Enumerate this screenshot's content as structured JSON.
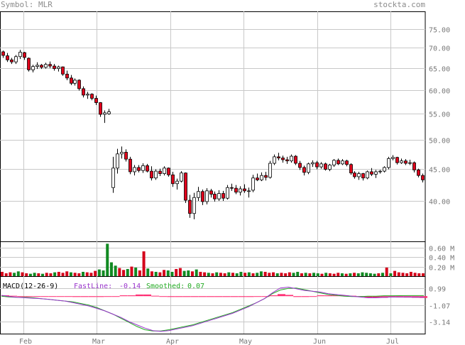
{
  "header": {
    "symbol_label": "Symbol: MLR",
    "site": "stockta.com"
  },
  "colors": {
    "up_candle": "#ffffff",
    "down_candle": "#e0001b",
    "volume_up": "#118a22",
    "volume_down": "#d4001a",
    "macd_histogram": "#ff2f74",
    "fastline": "#9933cc",
    "smoothed": "#22aa22",
    "grid": "#c8c8c8",
    "axis_text": "#777777"
  },
  "chart_data": [
    {
      "type": "candlestick",
      "title": "",
      "x_ticks": [
        "Feb",
        "Mar",
        "Apr",
        "May",
        "Jun",
        "Jul"
      ],
      "y_ticks": [
        "75.00",
        "70.00",
        "65.00",
        "60.00",
        "55.00",
        "50.00",
        "45.00",
        "40.00"
      ],
      "ylim": [
        34.5,
        80
      ],
      "y_scale": "log",
      "grid": true,
      "date_range": [
        "2013-01-21",
        "2013-07-23"
      ],
      "ohlc": [
        [
          69.0,
          69.3,
          67.5,
          68.1
        ],
        [
          68.0,
          68.7,
          66.5,
          67.0
        ],
        [
          67.0,
          67.5,
          66.0,
          66.5
        ],
        [
          66.5,
          68.2,
          66.0,
          67.8
        ],
        [
          67.8,
          69.5,
          67.2,
          68.9
        ],
        [
          68.8,
          69.0,
          67.0,
          67.6
        ],
        [
          67.4,
          67.6,
          64.2,
          64.6
        ],
        [
          64.6,
          65.8,
          64.0,
          65.4
        ],
        [
          65.4,
          66.4,
          64.8,
          65.7
        ],
        [
          65.7,
          66.0,
          64.8,
          65.2
        ],
        [
          65.2,
          66.3,
          64.9,
          65.9
        ],
        [
          65.9,
          66.6,
          65.0,
          65.5
        ],
        [
          65.5,
          66.0,
          64.4,
          64.9
        ],
        [
          64.9,
          65.6,
          64.2,
          65.3
        ],
        [
          65.3,
          65.4,
          63.2,
          63.6
        ],
        [
          63.6,
          64.4,
          62.2,
          62.7
        ],
        [
          62.7,
          63.4,
          61.1,
          61.5
        ],
        [
          61.5,
          62.6,
          61.0,
          62.2
        ],
        [
          62.2,
          62.4,
          59.9,
          60.3
        ],
        [
          60.3,
          60.8,
          58.4,
          58.9
        ],
        [
          58.9,
          59.6,
          58.1,
          59.1
        ],
        [
          59.1,
          59.3,
          57.8,
          58.2
        ],
        [
          58.2,
          58.8,
          56.8,
          57.3
        ],
        [
          57.3,
          57.4,
          54.4,
          54.9
        ],
        [
          54.9,
          55.7,
          53.2,
          55.2
        ],
        [
          55.0,
          56.0,
          54.8,
          55.4
        ],
        [
          42.0,
          47.0,
          41.2,
          45.1
        ],
        [
          45.1,
          48.4,
          44.2,
          47.5
        ],
        [
          47.5,
          48.8,
          46.7,
          47.8
        ],
        [
          47.8,
          48.3,
          46.2,
          46.6
        ],
        [
          46.6,
          47.0,
          44.1,
          44.5
        ],
        [
          44.5,
          45.6,
          43.9,
          45.2
        ],
        [
          45.2,
          45.6,
          44.4,
          44.7
        ],
        [
          44.7,
          45.9,
          44.3,
          45.5
        ],
        [
          45.5,
          45.8,
          44.4,
          44.6
        ],
        [
          44.6,
          45.4,
          43.1,
          43.5
        ],
        [
          43.5,
          44.9,
          43.2,
          44.6
        ],
        [
          44.6,
          45.0,
          43.8,
          44.2
        ],
        [
          44.2,
          45.4,
          43.9,
          45.1
        ],
        [
          45.1,
          45.2,
          43.7,
          44.0
        ],
        [
          44.0,
          44.5,
          42.1,
          42.6
        ],
        [
          42.6,
          43.4,
          41.7,
          43.0
        ],
        [
          43.0,
          44.6,
          42.8,
          44.3
        ],
        [
          44.3,
          44.4,
          39.7,
          40.1
        ],
        [
          40.1,
          40.9,
          37.6,
          38.2
        ],
        [
          38.2,
          41.2,
          37.4,
          40.5
        ],
        [
          40.5,
          42.1,
          40.0,
          41.4
        ],
        [
          41.4,
          41.7,
          39.4,
          39.9
        ],
        [
          39.9,
          41.9,
          39.5,
          41.5
        ],
        [
          41.5,
          41.8,
          40.5,
          41.0
        ],
        [
          41.0,
          41.4,
          39.9,
          40.3
        ],
        [
          40.3,
          41.6,
          40.0,
          41.1
        ],
        [
          41.1,
          41.5,
          40.0,
          40.4
        ],
        [
          40.4,
          42.4,
          40.2,
          42.0
        ],
        [
          42.0,
          42.6,
          41.5,
          41.9
        ],
        [
          41.9,
          42.4,
          41.0,
          41.3
        ],
        [
          41.3,
          42.2,
          40.8,
          41.8
        ],
        [
          41.8,
          42.5,
          41.2,
          41.5
        ],
        [
          41.5,
          42.0,
          40.5,
          41.5
        ],
        [
          41.6,
          44.0,
          41.3,
          43.5
        ],
        [
          43.5,
          44.2,
          43.0,
          43.2
        ],
        [
          43.2,
          44.4,
          43.0,
          43.9
        ],
        [
          43.9,
          44.5,
          43.1,
          43.6
        ],
        [
          43.6,
          46.3,
          43.4,
          45.9
        ],
        [
          45.9,
          47.4,
          45.6,
          47.0
        ],
        [
          47.0,
          47.7,
          46.4,
          46.8
        ],
        [
          46.8,
          47.2,
          46.0,
          46.5
        ],
        [
          46.5,
          47.0,
          45.8,
          46.3
        ],
        [
          46.3,
          47.4,
          46.0,
          47.1
        ],
        [
          47.1,
          47.3,
          45.6,
          45.9
        ],
        [
          45.9,
          46.3,
          44.8,
          45.2
        ],
        [
          45.2,
          45.5,
          43.9,
          44.4
        ],
        [
          44.4,
          46.0,
          44.1,
          45.8
        ],
        [
          45.8,
          46.4,
          45.3,
          46.0
        ],
        [
          46.0,
          46.3,
          44.9,
          45.3
        ],
        [
          45.3,
          46.1,
          45.0,
          45.8
        ],
        [
          45.8,
          46.0,
          44.7,
          44.9
        ],
        [
          44.9,
          45.8,
          44.6,
          45.6
        ],
        [
          45.6,
          46.6,
          45.3,
          46.4
        ],
        [
          46.4,
          46.7,
          45.6,
          45.8
        ],
        [
          45.8,
          46.6,
          45.6,
          46.3
        ],
        [
          46.3,
          46.5,
          45.4,
          45.7
        ],
        [
          45.7,
          45.9,
          44.0,
          44.3
        ],
        [
          44.3,
          44.6,
          43.4,
          43.7
        ],
        [
          43.7,
          44.5,
          43.2,
          44.2
        ],
        [
          44.2,
          44.3,
          43.1,
          43.5
        ],
        [
          43.5,
          44.7,
          43.3,
          44.5
        ],
        [
          44.5,
          45.1,
          43.8,
          44.1
        ],
        [
          44.1,
          44.8,
          43.5,
          44.5
        ],
        [
          44.5,
          44.8,
          44.2,
          44.6
        ],
        [
          44.6,
          45.4,
          44.4,
          45.2
        ],
        [
          45.2,
          47.0,
          44.9,
          46.7
        ],
        [
          46.7,
          47.3,
          46.4,
          46.9
        ],
        [
          46.9,
          47.0,
          45.7,
          46.0
        ],
        [
          46.0,
          46.7,
          45.8,
          46.3
        ],
        [
          46.3,
          46.6,
          45.6,
          45.9
        ],
        [
          45.9,
          46.5,
          45.6,
          46.0
        ],
        [
          46.0,
          46.2,
          44.4,
          44.8
        ],
        [
          44.8,
          45.0,
          43.6,
          43.9
        ],
        [
          43.9,
          44.2,
          42.8,
          43.2
        ]
      ]
    },
    {
      "type": "bar",
      "title": "",
      "y_ticks": [
        "0.60 M",
        "0.40 M",
        "0.20 M"
      ],
      "ylim": [
        0,
        0.7
      ],
      "grid": true,
      "values": [
        0.09,
        0.06,
        0.08,
        0.07,
        0.1,
        0.08,
        0.06,
        0.05,
        0.07,
        0.06,
        0.05,
        0.07,
        0.06,
        0.08,
        0.09,
        0.07,
        0.1,
        0.08,
        0.07,
        0.06,
        0.09,
        0.08,
        0.07,
        0.11,
        0.14,
        0.12,
        0.68,
        0.29,
        0.22,
        0.17,
        0.13,
        0.15,
        0.2,
        0.18,
        0.12,
        0.52,
        0.16,
        0.1,
        0.09,
        0.08,
        0.13,
        0.12,
        0.09,
        0.15,
        0.17,
        0.11,
        0.12,
        0.1,
        0.14,
        0.09,
        0.08,
        0.07,
        0.06,
        0.08,
        0.07,
        0.06,
        0.08,
        0.07,
        0.06,
        0.09,
        0.07,
        0.08,
        0.06,
        0.07,
        0.1,
        0.09,
        0.07,
        0.08,
        0.06,
        0.07,
        0.06,
        0.08,
        0.07,
        0.09,
        0.06,
        0.07,
        0.06,
        0.07,
        0.06,
        0.05,
        0.07,
        0.06,
        0.05,
        0.07,
        0.06,
        0.05,
        0.06,
        0.07,
        0.06,
        0.08,
        0.07,
        0.06,
        0.05,
        0.06,
        0.07,
        0.18,
        0.06,
        0.11,
        0.08,
        0.07,
        0.06,
        0.09,
        0.07,
        0.06,
        0.06
      ]
    },
    {
      "type": "line",
      "title": "MACD(12-26-9)",
      "y_ticks": [
        "0.99",
        "-1.07",
        "-3.14"
      ],
      "ylim": [
        -4.4,
        1.75
      ],
      "grid": true,
      "series": [
        {
          "name": "FastLine:",
          "value_label": "-0.14",
          "values": [
            0.1,
            -0.05,
            -0.15,
            -0.2,
            -0.25,
            -0.3,
            -0.4,
            -0.5,
            -0.6,
            -0.8,
            -1.0,
            -1.2,
            -1.5,
            -1.8,
            -2.2,
            -2.6,
            -3.1,
            -3.5,
            -3.9,
            -4.2,
            -4.3,
            -4.2,
            -4.0,
            -3.8,
            -3.6,
            -3.3,
            -3.0,
            -2.7,
            -2.4,
            -2.1,
            -1.7,
            -1.3,
            -0.8,
            -0.3,
            0.4,
            1.0,
            1.1,
            0.9,
            0.7,
            0.6,
            0.5,
            0.3,
            0.2,
            0.1,
            0.0,
            -0.1,
            -0.2,
            -0.2,
            -0.15,
            -0.1,
            -0.1,
            -0.1,
            -0.12,
            -0.14
          ]
        },
        {
          "name": "Smoothed:",
          "value_label": "0.07",
          "values": [
            0.0,
            -0.1,
            -0.15,
            -0.15,
            -0.2,
            -0.3,
            -0.4,
            -0.5,
            -0.6,
            -0.7,
            -0.9,
            -1.1,
            -1.4,
            -1.8,
            -2.2,
            -2.7,
            -3.2,
            -3.7,
            -4.1,
            -4.25,
            -4.25,
            -4.1,
            -3.9,
            -3.7,
            -3.5,
            -3.2,
            -2.9,
            -2.6,
            -2.3,
            -2.0,
            -1.6,
            -1.2,
            -0.8,
            -0.3,
            0.3,
            0.75,
            0.95,
            1.0,
            0.8,
            0.6,
            0.4,
            0.2,
            0.1,
            0.0,
            -0.05,
            -0.05,
            0.0,
            0.0,
            0.05,
            0.05,
            0.06,
            0.07,
            0.07,
            0.07
          ]
        },
        {
          "name": "histogram",
          "values": [
            0.1,
            0.05,
            0.0,
            -0.05,
            -0.05,
            0.0,
            0.0,
            0.0,
            0.0,
            -0.1,
            -0.1,
            -0.1,
            -0.1,
            0.0,
            0.0,
            0.1,
            0.1,
            0.2,
            0.2,
            0.05,
            -0.05,
            -0.1,
            -0.1,
            -0.1,
            -0.1,
            -0.1,
            -0.1,
            -0.1,
            -0.1,
            -0.1,
            -0.1,
            -0.1,
            0.0,
            0.0,
            0.1,
            0.25,
            0.15,
            -0.1,
            -0.1,
            0.0,
            0.1,
            0.1,
            0.1,
            0.1,
            0.05,
            -0.05,
            -0.2,
            -0.2,
            -0.2,
            -0.15,
            -0.16,
            -0.17,
            -0.19,
            -0.21
          ]
        }
      ]
    }
  ]
}
